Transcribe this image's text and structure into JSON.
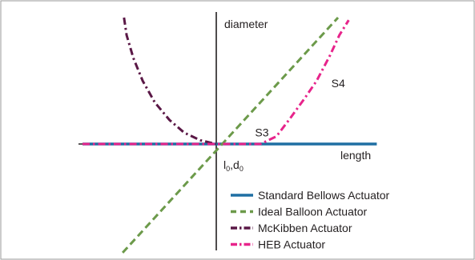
{
  "chart_data": {
    "type": "line",
    "title": "",
    "xlabel": "length",
    "ylabel": "diameter",
    "origin_label": {
      "l": "l",
      "l_sub": "0",
      "sep": ",",
      "d": "d",
      "d_sub": "0"
    },
    "xlim": [
      -1,
      1
    ],
    "ylim": [
      -1,
      1
    ],
    "grid": false,
    "legend_placement": "bottom-right",
    "annotations": [
      {
        "text": "S3",
        "x": 0.29,
        "y": 0.06
      },
      {
        "text": "S4",
        "x": 0.86,
        "y": 0.45
      }
    ],
    "series": [
      {
        "name": "Standard Bellows Actuator",
        "color": "#1f6fa3",
        "dash": "solid",
        "points": [
          [
            -1.0,
            0.0
          ],
          [
            1.2,
            0.0
          ]
        ]
      },
      {
        "name": "Ideal Balloon Actuator",
        "color": "#6c9a4a",
        "dash": "dashed",
        "points": [
          [
            -0.7,
            -0.86
          ],
          [
            0.91,
            1.0
          ]
        ]
      },
      {
        "name": "McKibben Actuator",
        "color": "#5a1846",
        "dash": "dashdot",
        "points": [
          [
            -0.69,
            1.0
          ],
          [
            -0.67,
            0.86
          ],
          [
            -0.62,
            0.68
          ],
          [
            -0.55,
            0.5
          ],
          [
            -0.46,
            0.33
          ],
          [
            -0.35,
            0.19
          ],
          [
            -0.24,
            0.09
          ],
          [
            -0.12,
            0.03
          ],
          [
            0.0,
            0.0
          ]
        ]
      },
      {
        "name": "HEB Actuator",
        "color": "#e7248b",
        "dash": "dashdot",
        "points": [
          [
            -1.0,
            0.0
          ],
          [
            0.33,
            0.0
          ],
          [
            0.45,
            0.06
          ],
          [
            0.55,
            0.2
          ],
          [
            0.66,
            0.36
          ],
          [
            0.75,
            0.5
          ],
          [
            0.85,
            0.7
          ],
          [
            0.92,
            0.86
          ],
          [
            0.99,
            0.98
          ]
        ]
      }
    ]
  }
}
